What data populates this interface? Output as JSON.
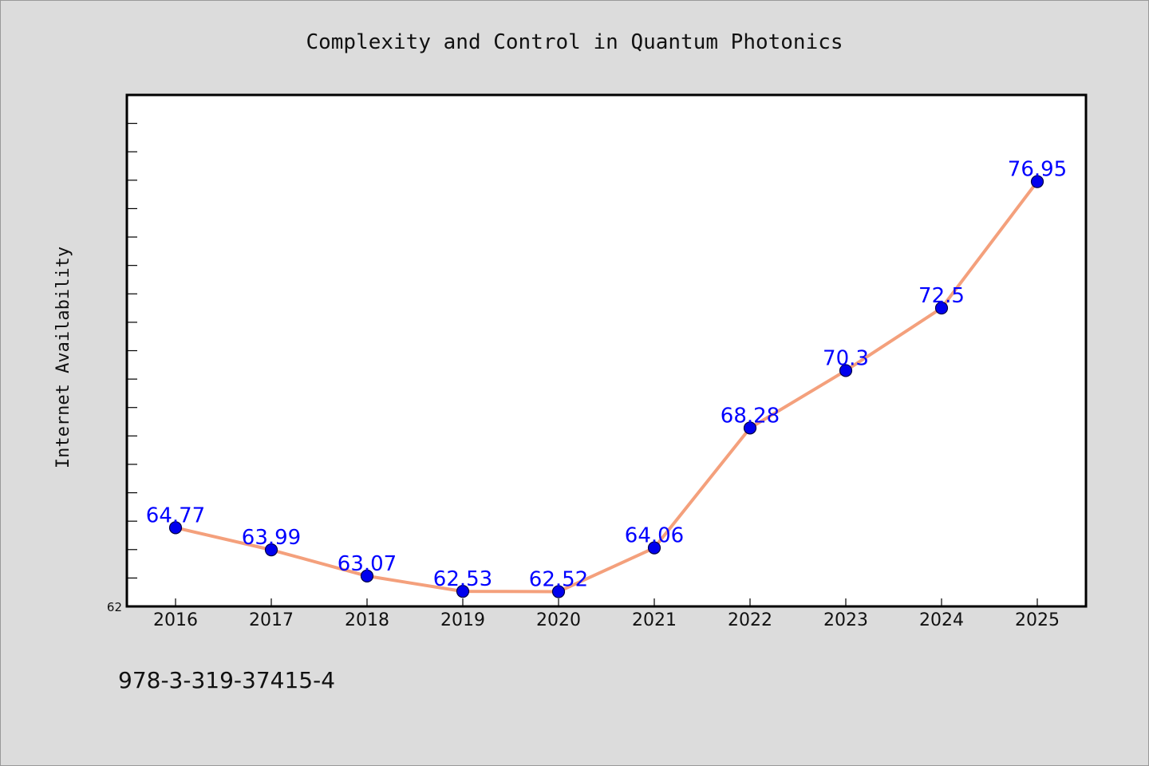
{
  "chart_data": {
    "type": "line",
    "title": "Complexity and Control in Quantum Photonics",
    "xlabel": "",
    "ylabel": "Internet Availability",
    "categories": [
      "2016",
      "2017",
      "2018",
      "2019",
      "2020",
      "2021",
      "2022",
      "2023",
      "2024",
      "2025"
    ],
    "series": [
      {
        "values": [
          64.77,
          63.99,
          63.07,
          62.53,
          62.52,
          64.06,
          68.28,
          70.3,
          72.5,
          76.95
        ],
        "data_labels": [
          "64.77",
          "63.99",
          "63.07",
          "62.53",
          "62.52",
          "64.06",
          "68.28",
          "70.3",
          "72.5",
          "76.95"
        ]
      }
    ],
    "ylim": [
      62,
      80
    ],
    "y_min_label": "62",
    "ytick_step": 1,
    "grid": false,
    "legend": "none",
    "colors": {
      "line": "#f4a07c",
      "marker_fill": "#0000ee",
      "marker_edge": "#000044",
      "data_label": "#0000ff",
      "plot_bg": "#ffffff",
      "page_bg": "#dcdcdc"
    }
  },
  "footnote": "978-3-319-37415-4"
}
